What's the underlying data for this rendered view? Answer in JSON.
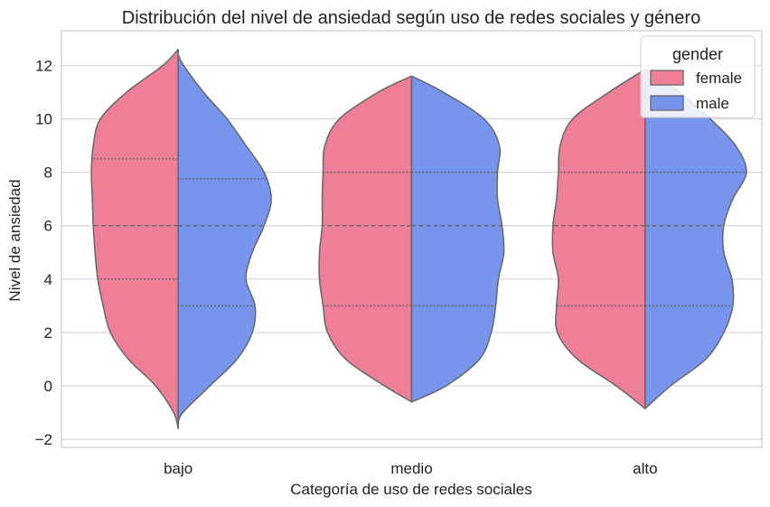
{
  "chart_data": {
    "type": "violin",
    "title": "Distribución del nivel de ansiedad según uso de redes sociales y género",
    "xlabel": "Categoría de uso de redes sociales",
    "ylabel": "Nivel de ansiedad",
    "categories": [
      "bajo",
      "medio",
      "alto"
    ],
    "ylim": [
      -2.3,
      13.3
    ],
    "yticks": [
      -2,
      0,
      2,
      4,
      6,
      8,
      10,
      12
    ],
    "grid": "horizontal",
    "split": true,
    "legend": {
      "title": "gender",
      "position": "top-right"
    },
    "series": [
      {
        "name": "female",
        "color": "#ee7f96",
        "violins": [
          {
            "category": "bajo",
            "min": -1.6,
            "max": 12.6,
            "quartiles": [
              4,
              6,
              8.5
            ],
            "profile": [
              [
                -1.6,
                0.0
              ],
              [
                -1.0,
                0.05
              ],
              [
                0.0,
                0.25
              ],
              [
                1.0,
                0.55
              ],
              [
                2.0,
                0.75
              ],
              [
                3.0,
                0.83
              ],
              [
                4.0,
                0.89
              ],
              [
                5.0,
                0.92
              ],
              [
                6.0,
                0.94
              ],
              [
                7.0,
                0.95
              ],
              [
                8.0,
                0.96
              ],
              [
                9.0,
                0.94
              ],
              [
                10.0,
                0.86
              ],
              [
                11.0,
                0.57
              ],
              [
                12.0,
                0.17
              ],
              [
                12.6,
                0.0
              ]
            ]
          },
          {
            "category": "medio",
            "min": -0.6,
            "max": 11.6,
            "quartiles": [
              3,
              6,
              8
            ],
            "profile": [
              [
                -0.6,
                0.0
              ],
              [
                0.0,
                0.3
              ],
              [
                1.0,
                0.73
              ],
              [
                2.0,
                0.93
              ],
              [
                3.0,
                0.98
              ],
              [
                4.0,
                1.02
              ],
              [
                5.0,
                1.02
              ],
              [
                6.0,
                0.99
              ],
              [
                7.0,
                0.99
              ],
              [
                8.0,
                0.98
              ],
              [
                9.0,
                0.96
              ],
              [
                10.0,
                0.8
              ],
              [
                11.0,
                0.37
              ],
              [
                11.6,
                0.0
              ]
            ]
          },
          {
            "category": "alto",
            "min": -0.85,
            "max": 11.85,
            "quartiles": [
              3,
              6,
              8
            ],
            "profile": [
              [
                -0.85,
                0.0
              ],
              [
                0.0,
                0.32
              ],
              [
                1.0,
                0.75
              ],
              [
                2.0,
                0.97
              ],
              [
                3.0,
                0.98
              ],
              [
                4.0,
                0.96
              ],
              [
                5.0,
                1.02
              ],
              [
                6.0,
                1.02
              ],
              [
                7.0,
                0.98
              ],
              [
                8.0,
                0.96
              ],
              [
                9.0,
                0.94
              ],
              [
                10.0,
                0.8
              ],
              [
                11.0,
                0.4
              ],
              [
                11.85,
                0.0
              ]
            ]
          }
        ]
      },
      {
        "name": "male",
        "color": "#7895ee",
        "violins": [
          {
            "category": "bajo",
            "min": -1.4,
            "max": 12.4,
            "quartiles": [
              3,
              6,
              7.75
            ],
            "profile": [
              [
                -1.4,
                0.0
              ],
              [
                -1.0,
                0.05
              ],
              [
                0.0,
                0.35
              ],
              [
                1.0,
                0.65
              ],
              [
                2.0,
                0.82
              ],
              [
                3.0,
                0.85
              ],
              [
                4.0,
                0.75
              ],
              [
                5.0,
                0.82
              ],
              [
                6.0,
                0.95
              ],
              [
                7.0,
                1.03
              ],
              [
                8.0,
                0.95
              ],
              [
                9.0,
                0.75
              ],
              [
                10.0,
                0.54
              ],
              [
                11.0,
                0.28
              ],
              [
                12.0,
                0.06
              ],
              [
                12.4,
                0.0
              ]
            ]
          },
          {
            "category": "medio",
            "min": -0.6,
            "max": 11.6,
            "quartiles": [
              3,
              6,
              8
            ],
            "profile": [
              [
                -0.6,
                0.0
              ],
              [
                0.0,
                0.38
              ],
              [
                1.0,
                0.75
              ],
              [
                2.0,
                0.88
              ],
              [
                3.0,
                0.93
              ],
              [
                4.0,
                0.96
              ],
              [
                5.0,
                1.02
              ],
              [
                6.0,
                1.0
              ],
              [
                7.0,
                0.95
              ],
              [
                8.0,
                0.95
              ],
              [
                9.0,
                0.97
              ],
              [
                10.0,
                0.8
              ],
              [
                11.0,
                0.35
              ],
              [
                11.6,
                0.0
              ]
            ]
          },
          {
            "category": "alto",
            "min": -0.85,
            "max": 11.85,
            "quartiles": [
              3,
              6,
              8
            ],
            "profile": [
              [
                -0.85,
                0.0
              ],
              [
                0.0,
                0.28
              ],
              [
                1.0,
                0.67
              ],
              [
                2.0,
                0.87
              ],
              [
                3.0,
                0.97
              ],
              [
                4.0,
                0.96
              ],
              [
                5.0,
                0.87
              ],
              [
                6.0,
                0.87
              ],
              [
                7.0,
                0.97
              ],
              [
                8.0,
                1.12
              ],
              [
                9.0,
                1.0
              ],
              [
                10.0,
                0.72
              ],
              [
                11.0,
                0.38
              ],
              [
                11.85,
                0.0
              ]
            ]
          }
        ]
      }
    ]
  }
}
